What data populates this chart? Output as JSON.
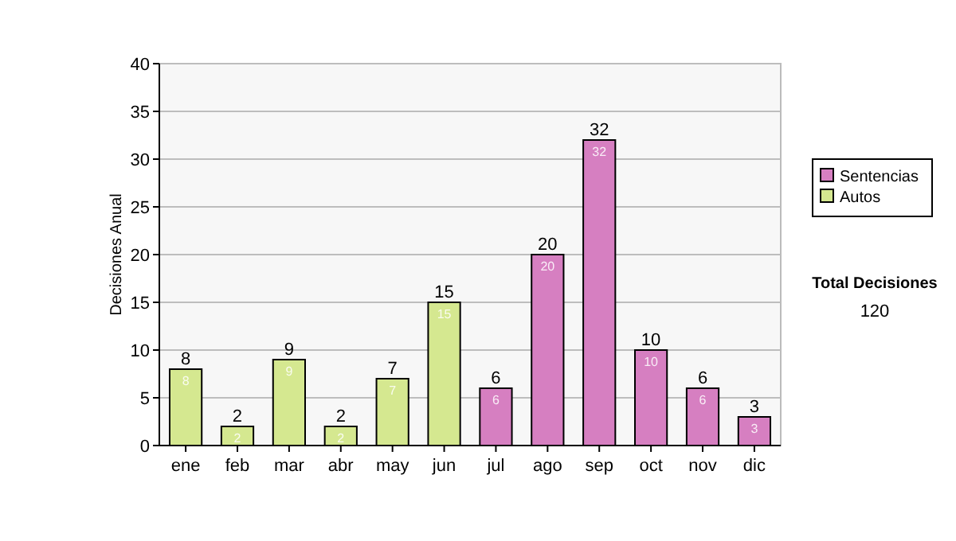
{
  "chart_data": {
    "type": "bar",
    "ylabel": "Decisiones Anual",
    "categories": [
      "ene",
      "feb",
      "mar",
      "abr",
      "may",
      "jun",
      "jul",
      "ago",
      "sep",
      "oct",
      "nov",
      "dic"
    ],
    "series": [
      {
        "name": "Sentencias",
        "color": "#d67fc1",
        "values": [
          null,
          null,
          null,
          null,
          null,
          null,
          6,
          20,
          32,
          10,
          6,
          3
        ],
        "value_labels": [
          null,
          null,
          null,
          null,
          null,
          null,
          "6",
          "20",
          "32",
          "10",
          "6",
          "3"
        ]
      },
      {
        "name": "Autos",
        "color": "#d5e890",
        "values": [
          8,
          2,
          9,
          2,
          7,
          15,
          null,
          null,
          null,
          null,
          null,
          null
        ],
        "value_labels": [
          "8",
          "2",
          "9",
          "2",
          "7",
          "15",
          null,
          null,
          null,
          null,
          null,
          null
        ]
      }
    ],
    "ylim": [
      0,
      40
    ],
    "yticks": [
      0,
      5,
      10,
      15,
      20,
      25,
      30,
      35,
      40
    ],
    "grid": "y",
    "legend": "right",
    "annotations": [
      "Total Decisiones",
      "120",
      {
        "text": "8",
        "x": "ene",
        "y": 8
      },
      {
        "text": "2",
        "x": "feb",
        "y": 2
      },
      {
        "text": "9",
        "x": "mar",
        "y": 9
      },
      {
        "text": "2",
        "x": "abr",
        "y": 2
      },
      {
        "text": "7",
        "x": "may",
        "y": 7
      },
      {
        "text": "15",
        "x": "jun",
        "y": 15
      },
      {
        "text": "6",
        "x": "jul",
        "y": 6
      },
      {
        "text": "20",
        "x": "ago",
        "y": 20
      },
      {
        "text": "32",
        "x": "sep",
        "y": 32
      },
      {
        "text": "10",
        "x": "oct",
        "y": 10
      },
      {
        "text": "6",
        "x": "nov",
        "y": 6
      },
      {
        "text": "3",
        "x": "dic",
        "y": 3
      }
    ]
  }
}
